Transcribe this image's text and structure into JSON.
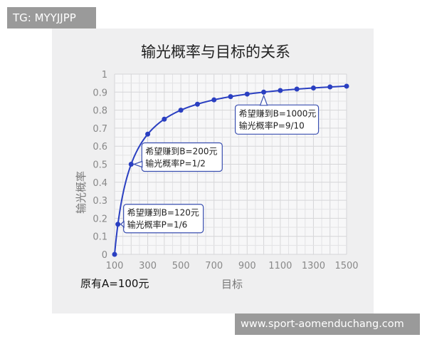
{
  "watermark_top": "TG: MYYJJPP",
  "watermark_bottom": "www.sport-aomenduchang.com",
  "chart_data": {
    "type": "line",
    "title": "输光概率与目标的关系",
    "xlabel": "目标",
    "ylabel": "输光概率",
    "xlim": [
      100,
      1500
    ],
    "ylim": [
      0,
      1
    ],
    "xticks": [
      "100",
      "300",
      "500",
      "700",
      "900",
      "1100",
      "1300",
      "1500"
    ],
    "yticks": [
      "0",
      "0.1",
      "0.2",
      "0.3",
      "0.4",
      "0.5",
      "0.6",
      "0.7",
      "0.8",
      "0.9",
      "1"
    ],
    "grid": true,
    "series_color": "#2a3fc1",
    "x": [
      100,
      120,
      200,
      300,
      400,
      500,
      600,
      700,
      800,
      900,
      1000,
      1100,
      1200,
      1300,
      1400,
      1500
    ],
    "y": [
      0,
      0.167,
      0.5,
      0.667,
      0.75,
      0.8,
      0.833,
      0.857,
      0.875,
      0.889,
      0.9,
      0.909,
      0.917,
      0.923,
      0.929,
      0.933
    ],
    "annotations": [
      {
        "x": 120,
        "y": 0.167,
        "line1": "希望赚到B=120元",
        "line2": "输光概率P=1/6"
      },
      {
        "x": 200,
        "y": 0.5,
        "line1": "希望赚到B=200元",
        "line2": "输光概率P=1/2"
      },
      {
        "x": 1000,
        "y": 0.9,
        "line1": "希望赚到B=1000元",
        "line2": "输光概率P=9/10"
      }
    ],
    "note": "原有A=100元"
  }
}
